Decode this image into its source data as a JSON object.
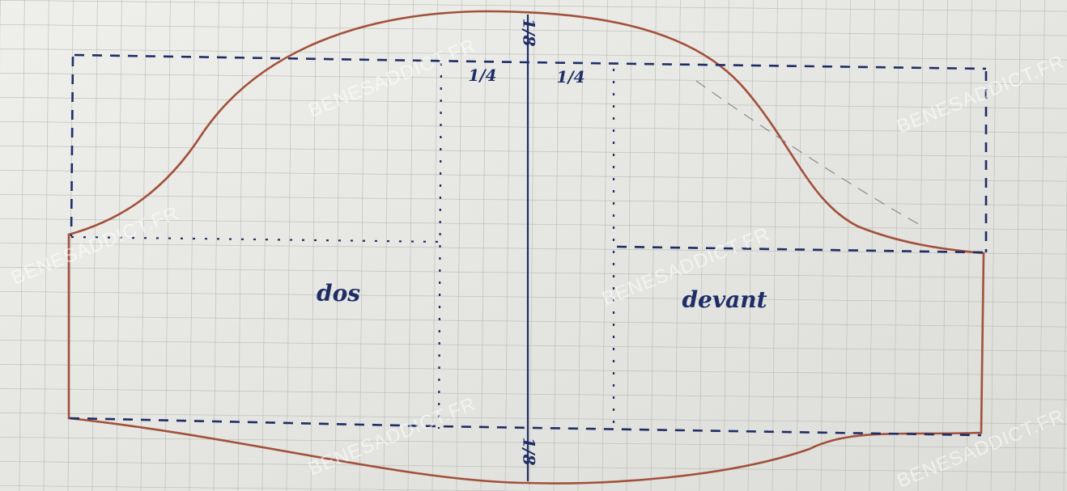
{
  "labels": {
    "top_measure": "1/8",
    "left_quarter": "1/4",
    "right_quarter": "1/4",
    "back": "dos",
    "front": "devant",
    "bottom_measure": "1/8"
  },
  "watermarks": [
    "BENESADDICT.FR",
    "BENESADDICT.FR",
    "BENESADDICT.FR",
    "BENESADDICT.FR",
    "BENESADDICT.FR",
    "BENESADDICT.FR"
  ]
}
